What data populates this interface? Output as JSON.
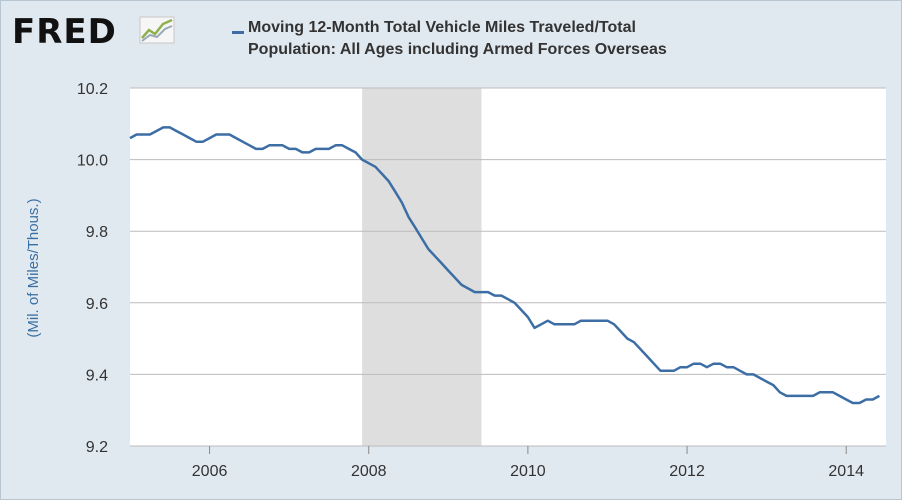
{
  "header": {
    "logo_text": "FRED",
    "logo_mark": "fred-sparkline-logo",
    "legend_line1": "Moving 12-Month Total Vehicle Miles Traveled/Total",
    "legend_line2": "Population: All Ages including Armed Forces Overseas"
  },
  "colors": {
    "background": "#e1e9f0",
    "plot_background": "#ffffff",
    "series": "#3c6ea5",
    "recession": "#dedede",
    "gridline": "#bcbcbc",
    "axis_label": "#3a6fa3"
  },
  "chart_data": {
    "type": "line",
    "title": "Moving 12-Month Total Vehicle Miles Traveled/Total Population: All Ages including Armed Forces Overseas",
    "ylabel": "(Mil. of Miles/Thous.)",
    "xlabel": "",
    "xlim": [
      "2005-01",
      "2014-07"
    ],
    "ylim": [
      9.2,
      10.2
    ],
    "x_ticks": [
      "2006",
      "2008",
      "2010",
      "2012",
      "2014"
    ],
    "y_ticks": [
      "9.2",
      "9.4",
      "9.6",
      "9.8",
      "10.0",
      "10.2"
    ],
    "grid": "horizontal",
    "recession_shading": [
      {
        "start": "2007-12",
        "end": "2009-06"
      }
    ],
    "series": [
      {
        "name": "Moving 12-Month Total Vehicle Miles Traveled/Total Population: All Ages including Armed Forces Overseas",
        "points": [
          [
            "2005-01",
            10.06
          ],
          [
            "2005-02",
            10.07
          ],
          [
            "2005-03",
            10.07
          ],
          [
            "2005-04",
            10.07
          ],
          [
            "2005-05",
            10.08
          ],
          [
            "2005-06",
            10.09
          ],
          [
            "2005-07",
            10.09
          ],
          [
            "2005-08",
            10.08
          ],
          [
            "2005-09",
            10.07
          ],
          [
            "2005-10",
            10.06
          ],
          [
            "2005-11",
            10.05
          ],
          [
            "2005-12",
            10.05
          ],
          [
            "2006-01",
            10.06
          ],
          [
            "2006-02",
            10.07
          ],
          [
            "2006-03",
            10.07
          ],
          [
            "2006-04",
            10.07
          ],
          [
            "2006-05",
            10.06
          ],
          [
            "2006-06",
            10.05
          ],
          [
            "2006-07",
            10.04
          ],
          [
            "2006-08",
            10.03
          ],
          [
            "2006-09",
            10.03
          ],
          [
            "2006-10",
            10.04
          ],
          [
            "2006-11",
            10.04
          ],
          [
            "2006-12",
            10.04
          ],
          [
            "2007-01",
            10.03
          ],
          [
            "2007-02",
            10.03
          ],
          [
            "2007-03",
            10.02
          ],
          [
            "2007-04",
            10.02
          ],
          [
            "2007-05",
            10.03
          ],
          [
            "2007-06",
            10.03
          ],
          [
            "2007-07",
            10.03
          ],
          [
            "2007-08",
            10.04
          ],
          [
            "2007-09",
            10.04
          ],
          [
            "2007-10",
            10.03
          ],
          [
            "2007-11",
            10.02
          ],
          [
            "2007-12",
            10.0
          ],
          [
            "2008-01",
            9.99
          ],
          [
            "2008-02",
            9.98
          ],
          [
            "2008-03",
            9.96
          ],
          [
            "2008-04",
            9.94
          ],
          [
            "2008-05",
            9.91
          ],
          [
            "2008-06",
            9.88
          ],
          [
            "2008-07",
            9.84
          ],
          [
            "2008-08",
            9.81
          ],
          [
            "2008-09",
            9.78
          ],
          [
            "2008-10",
            9.75
          ],
          [
            "2008-11",
            9.73
          ],
          [
            "2008-12",
            9.71
          ],
          [
            "2009-01",
            9.69
          ],
          [
            "2009-02",
            9.67
          ],
          [
            "2009-03",
            9.65
          ],
          [
            "2009-04",
            9.64
          ],
          [
            "2009-05",
            9.63
          ],
          [
            "2009-06",
            9.63
          ],
          [
            "2009-07",
            9.63
          ],
          [
            "2009-08",
            9.62
          ],
          [
            "2009-09",
            9.62
          ],
          [
            "2009-10",
            9.61
          ],
          [
            "2009-11",
            9.6
          ],
          [
            "2009-12",
            9.58
          ],
          [
            "2010-01",
            9.56
          ],
          [
            "2010-02",
            9.53
          ],
          [
            "2010-03",
            9.54
          ],
          [
            "2010-04",
            9.55
          ],
          [
            "2010-05",
            9.54
          ],
          [
            "2010-06",
            9.54
          ],
          [
            "2010-07",
            9.54
          ],
          [
            "2010-08",
            9.54
          ],
          [
            "2010-09",
            9.55
          ],
          [
            "2010-10",
            9.55
          ],
          [
            "2010-11",
            9.55
          ],
          [
            "2010-12",
            9.55
          ],
          [
            "2011-01",
            9.55
          ],
          [
            "2011-02",
            9.54
          ],
          [
            "2011-03",
            9.52
          ],
          [
            "2011-04",
            9.5
          ],
          [
            "2011-05",
            9.49
          ],
          [
            "2011-06",
            9.47
          ],
          [
            "2011-07",
            9.45
          ],
          [
            "2011-08",
            9.43
          ],
          [
            "2011-09",
            9.41
          ],
          [
            "2011-10",
            9.41
          ],
          [
            "2011-11",
            9.41
          ],
          [
            "2011-12",
            9.42
          ],
          [
            "2012-01",
            9.42
          ],
          [
            "2012-02",
            9.43
          ],
          [
            "2012-03",
            9.43
          ],
          [
            "2012-04",
            9.42
          ],
          [
            "2012-05",
            9.43
          ],
          [
            "2012-06",
            9.43
          ],
          [
            "2012-07",
            9.42
          ],
          [
            "2012-08",
            9.42
          ],
          [
            "2012-09",
            9.41
          ],
          [
            "2012-10",
            9.4
          ],
          [
            "2012-11",
            9.4
          ],
          [
            "2012-12",
            9.39
          ],
          [
            "2013-01",
            9.38
          ],
          [
            "2013-02",
            9.37
          ],
          [
            "2013-03",
            9.35
          ],
          [
            "2013-04",
            9.34
          ],
          [
            "2013-05",
            9.34
          ],
          [
            "2013-06",
            9.34
          ],
          [
            "2013-07",
            9.34
          ],
          [
            "2013-08",
            9.34
          ],
          [
            "2013-09",
            9.35
          ],
          [
            "2013-10",
            9.35
          ],
          [
            "2013-11",
            9.35
          ],
          [
            "2013-12",
            9.34
          ],
          [
            "2014-01",
            9.33
          ],
          [
            "2014-02",
            9.32
          ],
          [
            "2014-03",
            9.32
          ],
          [
            "2014-04",
            9.33
          ],
          [
            "2014-05",
            9.33
          ],
          [
            "2014-06",
            9.34
          ]
        ]
      }
    ]
  }
}
